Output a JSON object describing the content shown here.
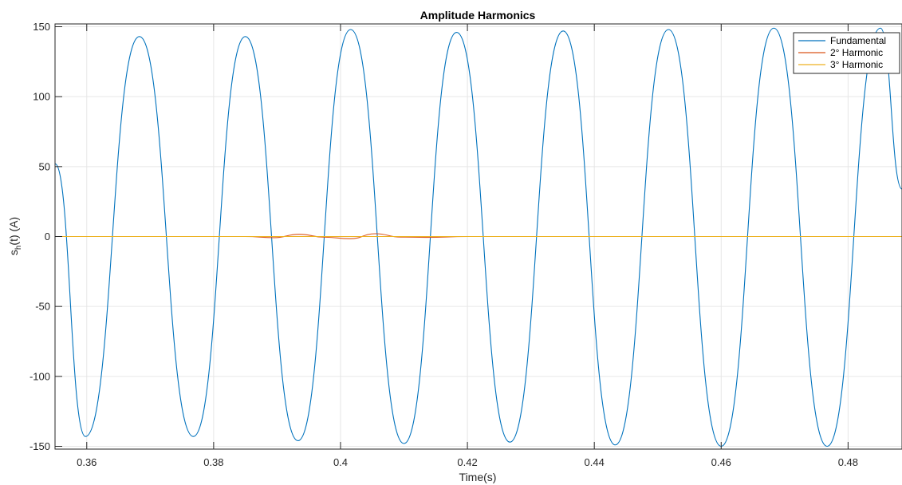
{
  "chart_data": {
    "type": "line",
    "title": "Amplitude Harmonics",
    "xlabel": "Time(s)",
    "ylabel": "s",
    "ylabel_sub": "h",
    "ylabel_rest": "(t) (A)",
    "xlim": [
      0.355,
      0.4885
    ],
    "ylim": [
      -152,
      152
    ],
    "xticks": [
      0.36,
      0.38,
      0.4,
      0.42,
      0.44,
      0.46,
      0.48
    ],
    "xtick_labels": [
      "0.36",
      "0.38",
      "0.4",
      "0.42",
      "0.44",
      "0.46",
      "0.48"
    ],
    "yticks": [
      -150,
      -100,
      -50,
      0,
      50,
      100,
      150
    ],
    "ytick_labels": [
      "-150",
      "-100",
      "-50",
      "0",
      "50",
      "100",
      "150"
    ],
    "grid": true,
    "legend_position": "top-right",
    "series": [
      {
        "name": "Fundamental",
        "color": "#0072BD",
        "x": [
          0.355,
          0.3598,
          0.3683,
          0.3768,
          0.385,
          0.3933,
          0.4016,
          0.41,
          0.4183,
          0.4267,
          0.4351,
          0.4433,
          0.4517,
          0.46,
          0.4683,
          0.4767,
          0.4851,
          0.4885
        ],
        "y": [
          52,
          -143,
          143,
          -143,
          143,
          -146,
          148,
          -148,
          146,
          -147,
          147,
          -149,
          148,
          -150,
          149,
          -150,
          149,
          34
        ]
      },
      {
        "name": "2° Harmonic",
        "color": "#D95319",
        "x": [
          0.355,
          0.385,
          0.3895,
          0.3935,
          0.3975,
          0.4015,
          0.4055,
          0.4095,
          0.4135,
          0.42,
          0.4885
        ],
        "y": [
          0,
          0,
          -0.8,
          1.6,
          -0.5,
          -1.6,
          2.0,
          -0.4,
          -0.6,
          0,
          0
        ]
      },
      {
        "name": "3° Harmonic",
        "color": "#EDB120",
        "x": [
          0.355,
          0.4885
        ],
        "y": [
          0,
          0
        ]
      }
    ]
  }
}
